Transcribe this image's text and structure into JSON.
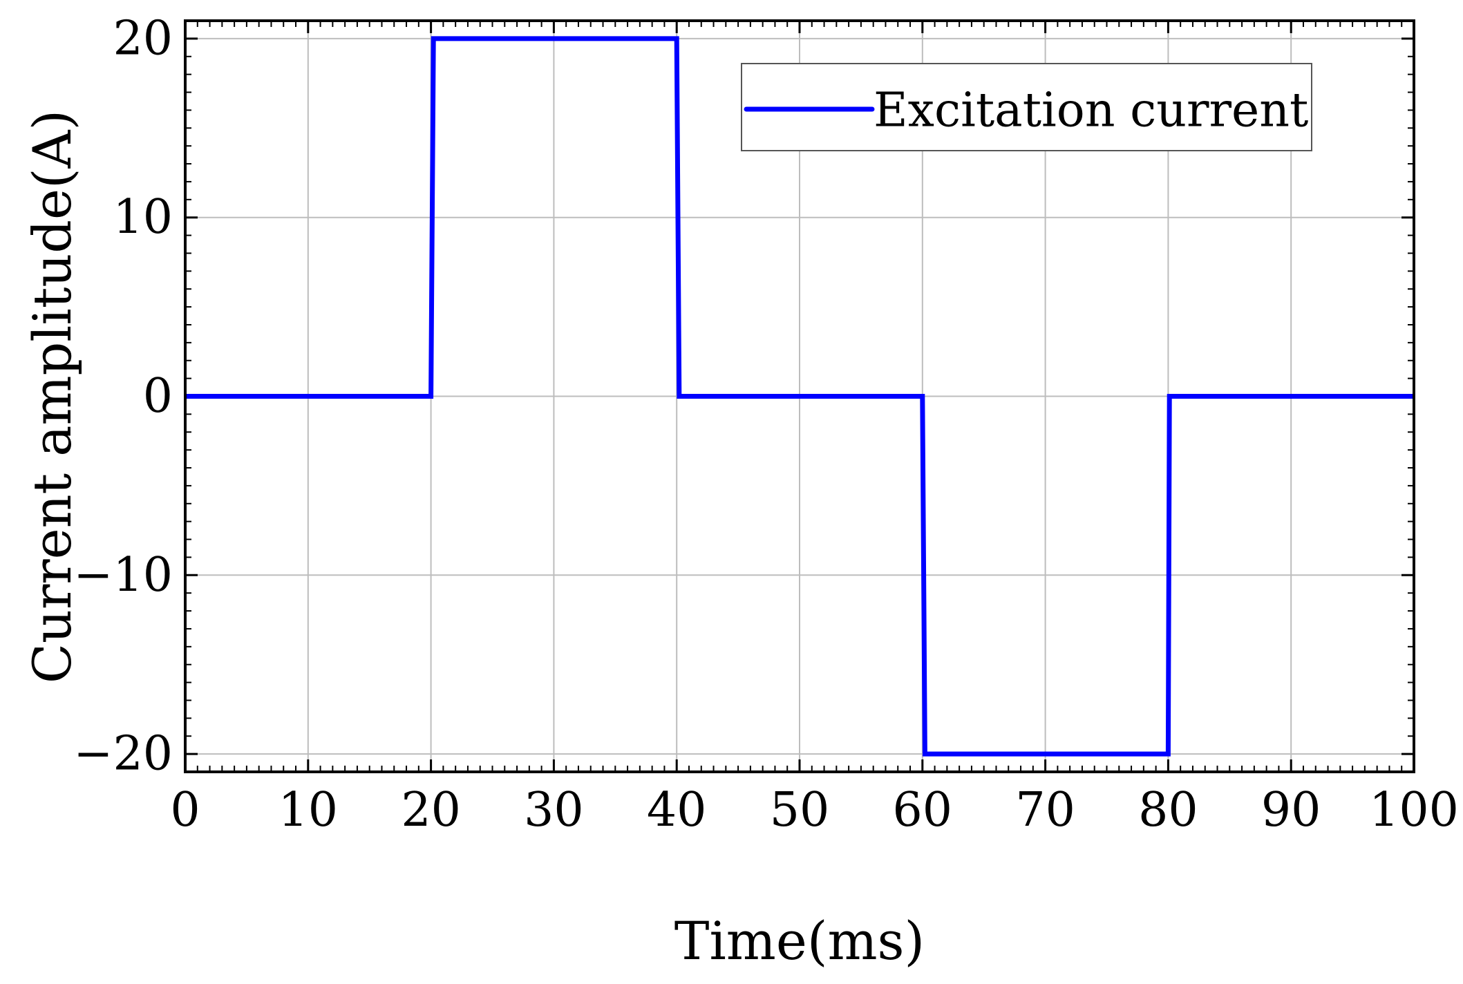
{
  "chart_data": {
    "type": "line",
    "title": "",
    "xlabel": "Time(ms)",
    "ylabel": "Current amplitude(A)",
    "xlim": [
      0,
      100
    ],
    "ylim": [
      -21,
      21
    ],
    "x_ticks": [
      0,
      10,
      20,
      30,
      40,
      50,
      60,
      70,
      80,
      90,
      100
    ],
    "x_tick_labels": [
      "0",
      "10",
      "20",
      "30",
      "40",
      "50",
      "60",
      "70",
      "80",
      "90",
      "100"
    ],
    "y_ticks": [
      20,
      10,
      0,
      -10,
      -20
    ],
    "y_tick_labels": [
      "20",
      "10",
      "0",
      "−10",
      "−20"
    ],
    "grid": true,
    "legend": "top-right",
    "series": [
      {
        "name": "Excitation current",
        "color": "#0000ff",
        "x": [
          0,
          20,
          20.2,
          40,
          40.2,
          60,
          60.2,
          80,
          80.1,
          100
        ],
        "y": [
          0,
          0,
          20,
          20,
          0,
          0,
          -20,
          -20,
          0,
          0
        ]
      }
    ]
  }
}
